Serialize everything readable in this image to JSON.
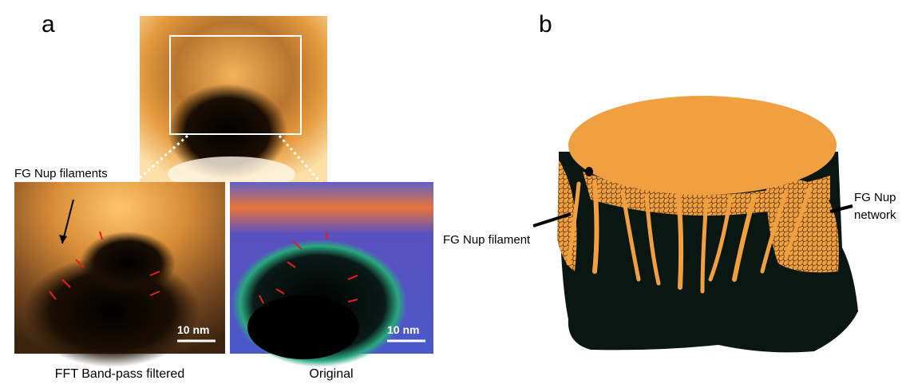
{
  "panel_a": {
    "label": "a",
    "annotation": "FG Nup filaments",
    "scale_bar_left": "10 nm",
    "scale_bar_right": "10 nm",
    "caption_left": "FFT Band-pass filtered",
    "caption_right": "Original"
  },
  "panel_b": {
    "label": "b",
    "filament_label": "FG Nup filament",
    "network_label": [
      "FG Nup",
      "network"
    ]
  }
}
